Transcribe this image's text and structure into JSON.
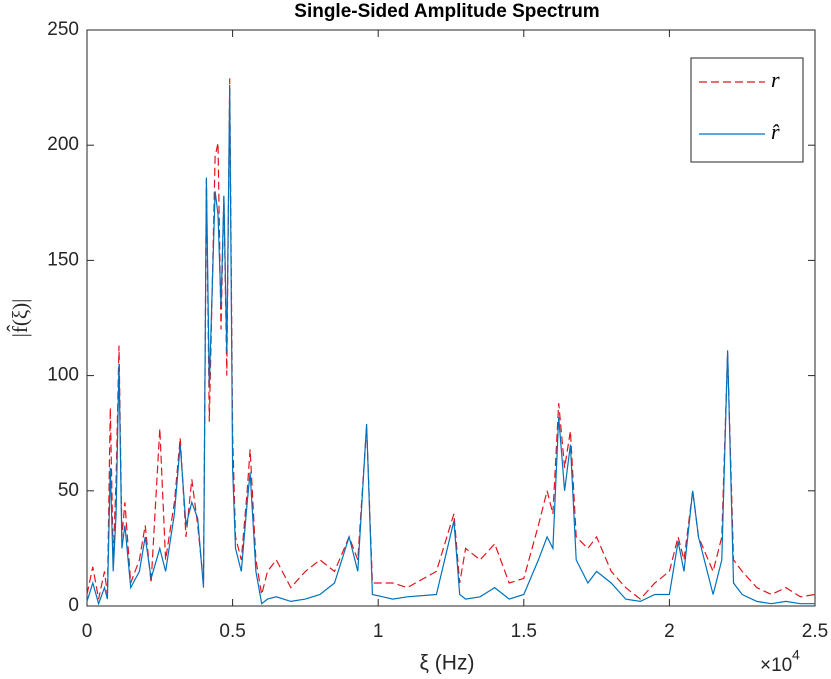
{
  "chart_data": {
    "type": "line",
    "title": "Single-Sided Amplitude Spectrum",
    "x_label": "ξ (Hz)",
    "y_label": "|f̂(ξ)|",
    "x_multiplier": {
      "base": "×10",
      "exponent": "4"
    },
    "x": [
      0,
      0.02,
      0.04,
      0.06,
      0.07,
      0.08,
      0.09,
      0.1,
      0.11,
      0.12,
      0.13,
      0.15,
      0.18,
      0.2,
      0.22,
      0.25,
      0.27,
      0.3,
      0.32,
      0.34,
      0.36,
      0.38,
      0.4,
      0.41,
      0.42,
      0.44,
      0.45,
      0.46,
      0.47,
      0.48,
      0.49,
      0.5,
      0.51,
      0.53,
      0.55,
      0.56,
      0.58,
      0.6,
      0.62,
      0.65,
      0.7,
      0.75,
      0.8,
      0.85,
      0.9,
      0.93,
      0.96,
      0.98,
      1.05,
      1.1,
      1.2,
      1.26,
      1.28,
      1.3,
      1.35,
      1.4,
      1.45,
      1.5,
      1.55,
      1.58,
      1.6,
      1.62,
      1.64,
      1.66,
      1.68,
      1.72,
      1.75,
      1.8,
      1.85,
      1.9,
      1.95,
      2.0,
      2.03,
      2.05,
      2.08,
      2.1,
      2.15,
      2.18,
      2.2,
      2.22,
      2.25,
      2.3,
      2.35,
      2.4,
      2.45,
      2.5
    ],
    "series": [
      {
        "name": "r",
        "color": "#e3141c",
        "dash": true,
        "values": [
          5,
          17,
          3,
          15,
          5,
          86,
          20,
          55,
          113,
          30,
          45,
          10,
          20,
          35,
          10,
          77,
          20,
          45,
          73,
          30,
          55,
          35,
          10,
          185,
          80,
          195,
          201,
          120,
          178,
          100,
          229,
          75,
          30,
          20,
          50,
          68,
          20,
          5,
          15,
          20,
          8,
          15,
          20,
          15,
          30,
          20,
          78,
          10,
          10,
          8,
          15,
          40,
          10,
          25,
          20,
          27,
          10,
          12,
          35,
          50,
          40,
          88,
          60,
          76,
          30,
          25,
          30,
          15,
          8,
          3,
          10,
          15,
          30,
          20,
          50,
          30,
          15,
          30,
          110,
          20,
          15,
          8,
          5,
          8,
          4,
          5
        ]
      },
      {
        "name": "r̂",
        "color": "#0072bd",
        "dash": false,
        "values": [
          2,
          10,
          1,
          8,
          3,
          60,
          15,
          40,
          105,
          25,
          35,
          8,
          15,
          30,
          12,
          25,
          15,
          40,
          70,
          35,
          45,
          38,
          8,
          186,
          95,
          180,
          170,
          130,
          178,
          110,
          225,
          60,
          25,
          15,
          45,
          58,
          15,
          1,
          3,
          4,
          2,
          3,
          5,
          10,
          30,
          15,
          79,
          5,
          3,
          4,
          5,
          37,
          5,
          3,
          4,
          8,
          3,
          5,
          20,
          30,
          25,
          82,
          50,
          70,
          20,
          10,
          15,
          10,
          3,
          2,
          5,
          5,
          28,
          15,
          50,
          30,
          5,
          20,
          111,
          10,
          5,
          2,
          1,
          2,
          1,
          1
        ]
      }
    ],
    "xlim": [
      0,
      2.5
    ],
    "xticks": [
      0,
      0.5,
      1,
      1.5,
      2,
      2.5
    ],
    "ylim": [
      0,
      250
    ],
    "yticks": [
      0,
      50,
      100,
      150,
      200,
      250
    ],
    "legend": "northeast",
    "grid": false
  }
}
